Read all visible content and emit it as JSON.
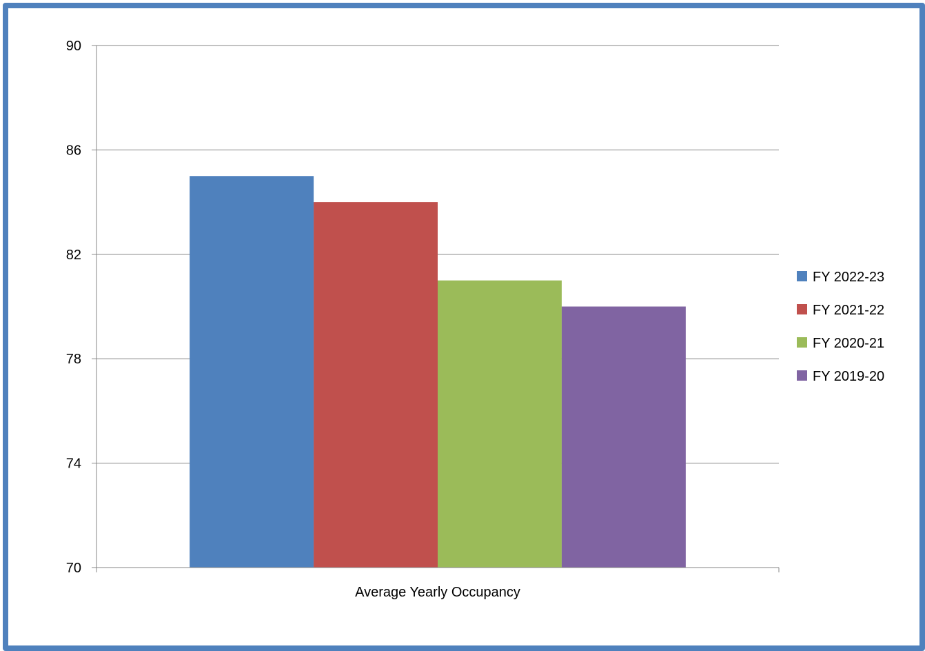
{
  "chart_data": {
    "type": "bar",
    "categories": [
      "Average Yearly Occupancy"
    ],
    "series": [
      {
        "name": "FY 2022-23",
        "values": [
          85
        ],
        "color": "#4f81bd"
      },
      {
        "name": "FY 2021-22",
        "values": [
          84
        ],
        "color": "#c0504d"
      },
      {
        "name": "FY 2020-21",
        "values": [
          81
        ],
        "color": "#9bbb59"
      },
      {
        "name": "FY 2019-20",
        "values": [
          80
        ],
        "color": "#8064a2"
      }
    ],
    "title": "",
    "xlabel": "",
    "ylabel": "",
    "ylim": [
      70,
      90
    ],
    "yticks": [
      "70",
      "74",
      "78",
      "82",
      "86",
      "90"
    ],
    "grid": true,
    "legend_position": "right"
  },
  "colors": {
    "frame_border": "#4f81bd",
    "gridline": "#868686"
  }
}
